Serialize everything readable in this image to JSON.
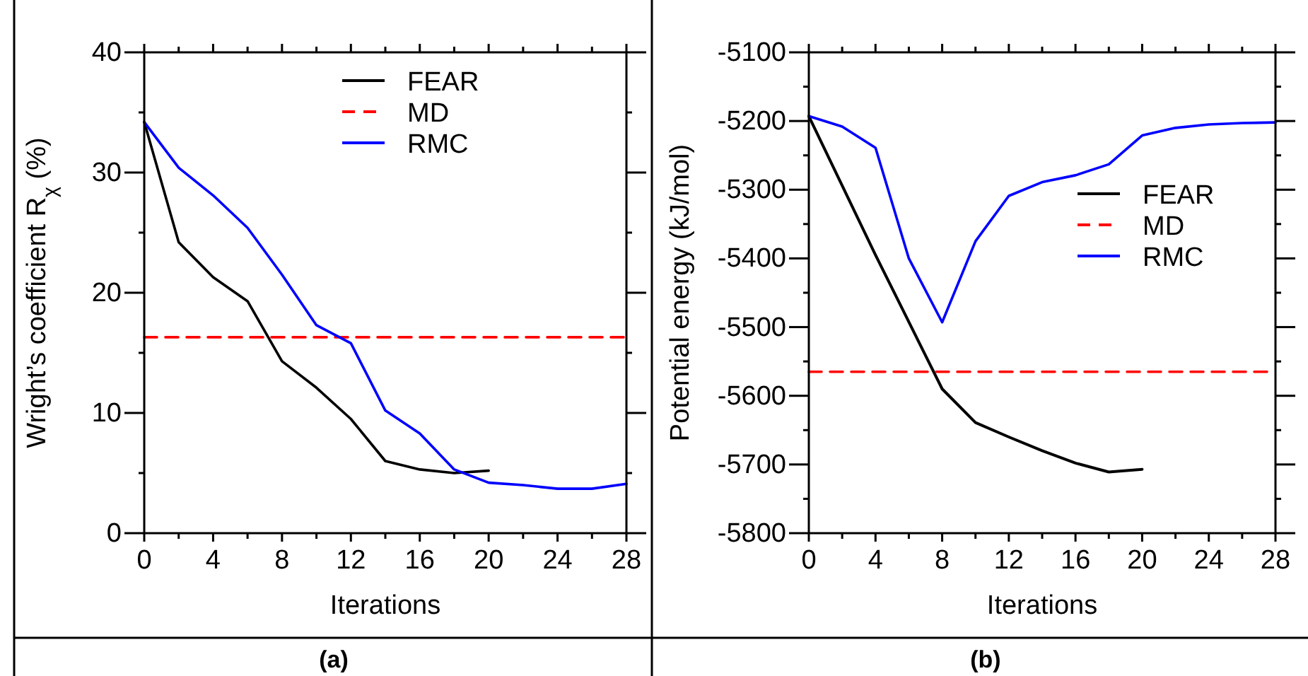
{
  "chart_data": [
    {
      "type": "line",
      "xlabel": "Iterations",
      "ylabel": "Wright’s coefficient R$_{χ}$ (%)",
      "annotations": [
        "(a)"
      ],
      "xlim": [
        0,
        28
      ],
      "xticks": [
        0,
        {
          "value": 2,
          "label": null
        },
        4,
        {
          "value": 6,
          "label": null
        },
        8,
        {
          "value": 10,
          "label": null
        },
        12,
        {
          "value": 14,
          "label": null
        },
        16,
        {
          "value": 18,
          "label": null
        },
        20,
        {
          "value": 22,
          "label": null
        },
        24,
        {
          "value": 26,
          "label": null
        },
        28
      ],
      "ylim": [
        0,
        40
      ],
      "yticks": [
        0,
        {
          "value": 5,
          "label": null
        },
        10,
        {
          "value": 15,
          "label": null
        },
        20,
        {
          "value": 25,
          "label": null
        },
        30,
        {
          "value": 35,
          "label": null
        },
        40
      ],
      "legend": "top right",
      "grid": false,
      "marker": "none",
      "series": [
        {
          "name": "FEAR",
          "color": "#000000",
          "x": [
            0,
            2,
            4,
            6,
            8,
            10,
            12,
            14,
            16,
            18,
            20
          ],
          "values": [
            34.2,
            24.2,
            21.3,
            19.3,
            14.3,
            12.1,
            9.5,
            6.0,
            5.3,
            5.0,
            5.2
          ]
        },
        {
          "name": "MD",
          "color": "#ff0000",
          "line_style": "dashed",
          "x": [
            0,
            28
          ],
          "values": [
            16.3,
            16.3
          ]
        },
        {
          "name": "RMC",
          "color": "#0000ff",
          "x": [
            0,
            2,
            4,
            6,
            8,
            10,
            12,
            14,
            16,
            18,
            20,
            22,
            24,
            26,
            28
          ],
          "values": [
            34.2,
            30.4,
            28.1,
            25.4,
            21.5,
            17.3,
            15.8,
            10.2,
            8.3,
            5.3,
            4.2,
            4.0,
            3.7,
            3.7,
            4.1
          ]
        }
      ]
    },
    {
      "type": "line",
      "xlabel": "Iterations",
      "ylabel": "Potential energy (kJ/mol)",
      "annotations": [
        "(b)"
      ],
      "xlim": [
        0,
        28
      ],
      "xticks": [
        0,
        {
          "value": 2,
          "label": null
        },
        4,
        {
          "value": 6,
          "label": null
        },
        8,
        {
          "value": 10,
          "label": null
        },
        12,
        {
          "value": 14,
          "label": null
        },
        16,
        {
          "value": 18,
          "label": null
        },
        20,
        {
          "value": 22,
          "label": null
        },
        24,
        {
          "value": 26,
          "label": null
        },
        28
      ],
      "ylim": [
        -5800,
        -5100
      ],
      "yticks": [
        -5800,
        {
          "value": -5750,
          "label": null
        },
        -5700,
        {
          "value": -5650,
          "label": null
        },
        -5600,
        {
          "value": -5550,
          "label": null
        },
        -5500,
        {
          "value": -5450,
          "label": null
        },
        -5400,
        {
          "value": -5350,
          "label": null
        },
        -5300,
        {
          "value": -5250,
          "label": null
        },
        -5200,
        {
          "value": -5150,
          "label": null
        },
        -5100
      ],
      "legend": "right",
      "grid": false,
      "marker": "none",
      "series": [
        {
          "name": "FEAR",
          "color": "#000000",
          "x": [
            0,
            4,
            8,
            10,
            12,
            14,
            16,
            18,
            20
          ],
          "values": [
            -5193,
            -5395,
            -5590,
            -5639,
            -5660,
            -5680,
            -5698,
            -5711,
            -5707
          ]
        },
        {
          "name": "MD",
          "color": "#ff0000",
          "line_style": "dashed",
          "x": [
            0,
            28
          ],
          "values": [
            -5565,
            -5565
          ]
        },
        {
          "name": "RMC",
          "color": "#0000ff",
          "x": [
            0,
            2,
            4,
            6,
            8,
            10,
            12,
            14,
            16,
            18,
            20,
            22,
            24,
            26,
            28
          ],
          "values": [
            -5193,
            -5208,
            -5239,
            -5400,
            -5493,
            -5375,
            -5309,
            -5289,
            -5279,
            -5263,
            -5221,
            -5210,
            -5205,
            -5203,
            -5202
          ]
        }
      ]
    }
  ]
}
